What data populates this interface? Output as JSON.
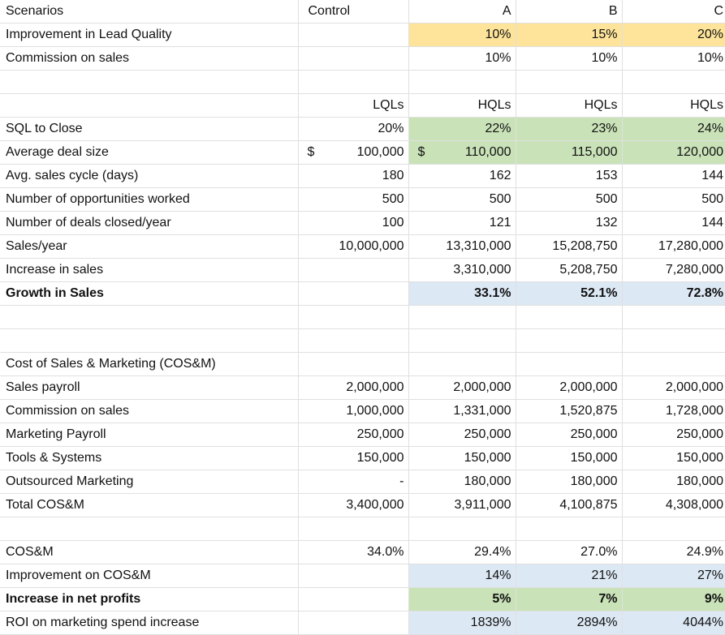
{
  "table": {
    "rows": [
      [
        "Scenarios",
        "Control",
        "A",
        "B",
        "C"
      ],
      [
        "Improvement in Lead Quality",
        null,
        "10%",
        "15%",
        "20%"
      ],
      [
        "Commission on sales",
        null,
        "10%",
        "10%",
        "10%"
      ],
      null,
      [
        null,
        "LQLs",
        "HQLs",
        "HQLs",
        "HQLs"
      ],
      [
        "SQL to Close",
        "20%",
        "22%",
        "23%",
        "24%"
      ],
      [
        "Average deal size",
        {
          "currency": "$",
          "amount": "100,000"
        },
        {
          "currency": "$",
          "amount": "110,000"
        },
        "115,000",
        "120,000"
      ],
      [
        "Avg. sales cycle (days)",
        "180",
        "162",
        "153",
        "144"
      ],
      [
        "Number of opportunities worked",
        "500",
        "500",
        "500",
        "500"
      ],
      [
        "Number of deals closed/year",
        "100",
        "121",
        "132",
        "144"
      ],
      [
        "Sales/year",
        "10,000,000",
        "13,310,000",
        "15,208,750",
        "17,280,000"
      ],
      [
        "Increase in sales",
        null,
        "3,310,000",
        "5,208,750",
        "7,280,000"
      ],
      [
        "Growth in Sales",
        null,
        "33.1%",
        "52.1%",
        "72.8%"
      ],
      null,
      null,
      [
        "Cost of Sales & Marketing (COS&M)",
        null,
        null,
        null,
        null
      ],
      [
        "Sales payroll",
        "2,000,000",
        "2,000,000",
        "2,000,000",
        "2,000,000"
      ],
      [
        "Commission on sales",
        "1,000,000",
        "1,331,000",
        "1,520,875",
        "1,728,000"
      ],
      [
        "Marketing Payroll",
        "250,000",
        "250,000",
        "250,000",
        "250,000"
      ],
      [
        "Tools & Systems",
        "150,000",
        "150,000",
        "150,000",
        "150,000"
      ],
      [
        "Outsourced Marketing",
        "-",
        "180,000",
        "180,000",
        "180,000"
      ],
      [
        "Total COS&M",
        "3,400,000",
        "3,911,000",
        "4,100,875",
        "4,308,000"
      ],
      null,
      [
        "COS&M",
        "34.0%",
        "29.4%",
        "27.0%",
        "24.9%"
      ],
      [
        "Improvement on COS&M",
        null,
        "14%",
        "21%",
        "27%"
      ],
      [
        "Increase in net profits",
        null,
        "5%",
        "7%",
        "9%"
      ],
      [
        "ROI on marketing spend increase",
        null,
        "1839%",
        "2894%",
        "4044%"
      ]
    ]
  }
}
